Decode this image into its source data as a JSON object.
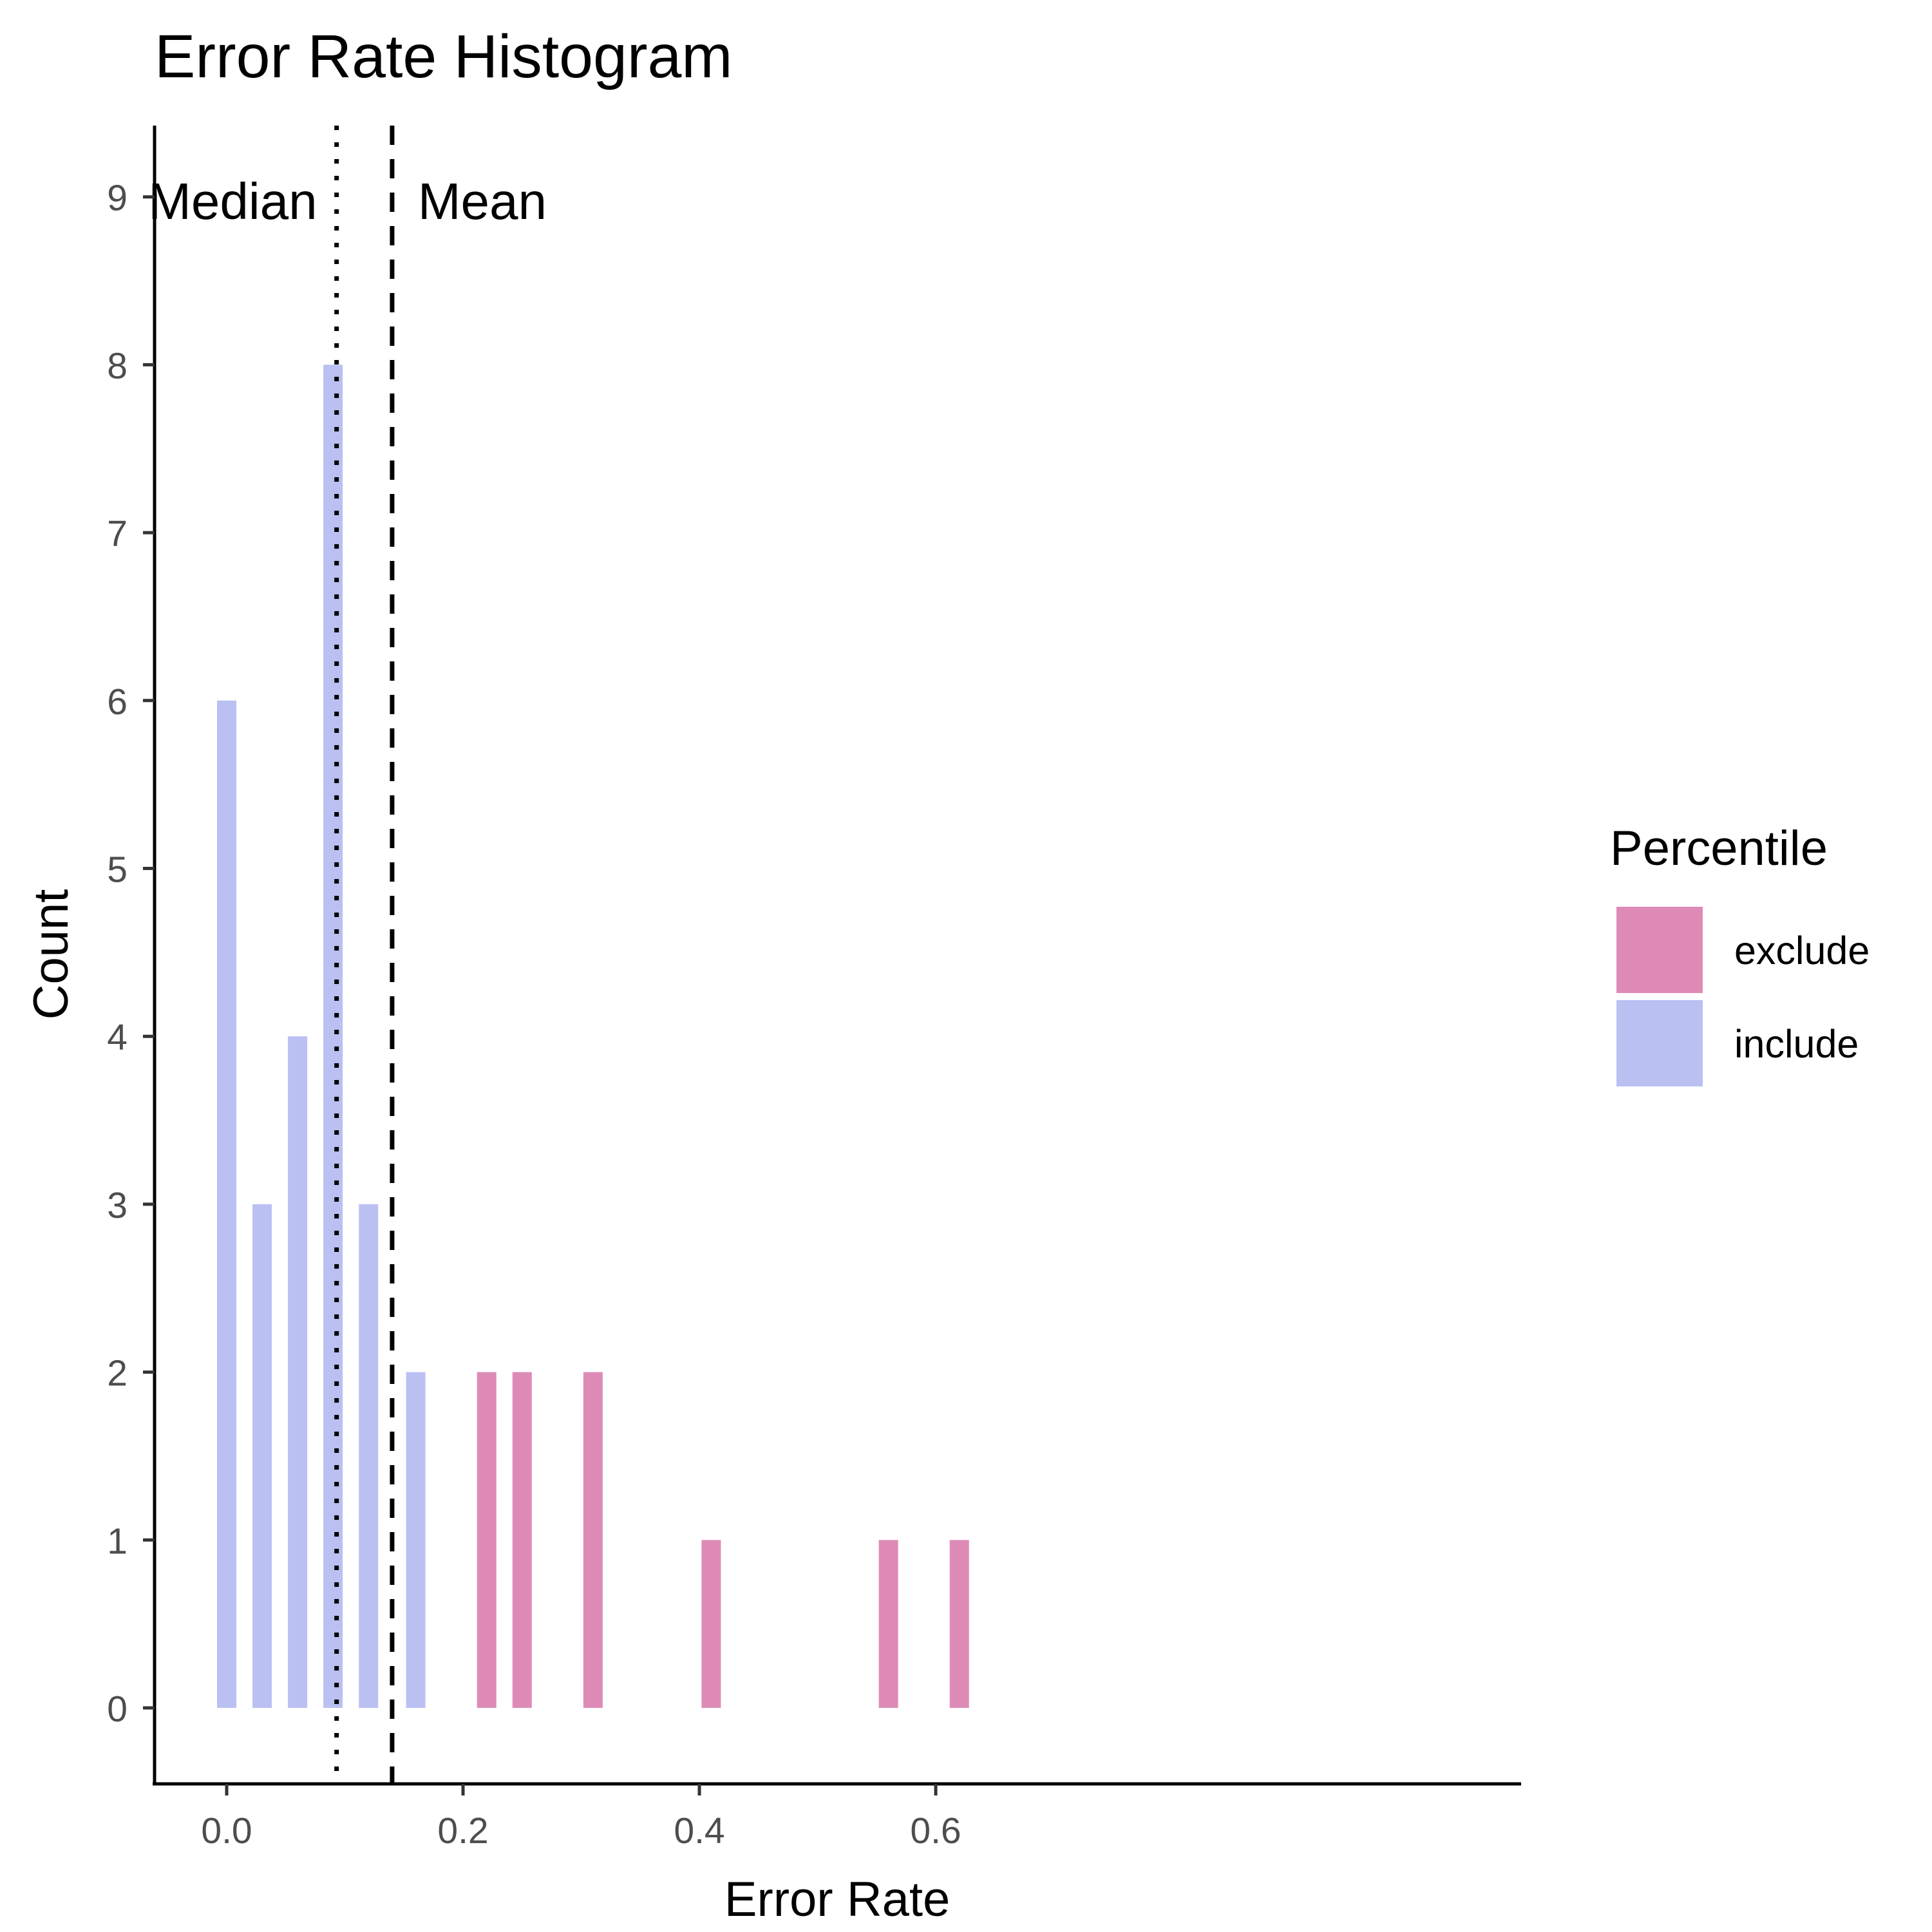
{
  "chart_data": {
    "type": "bar",
    "title": "Error Rate Histogram",
    "xlabel": "Error Rate",
    "ylabel": "Count",
    "xlim": [
      -0.09,
      0.655
    ],
    "ylim": [
      -0.45,
      9.45
    ],
    "x_ticks": [
      0.0,
      0.2,
      0.4,
      0.6
    ],
    "x_tick_labels": [
      "0.0",
      "0.2",
      "0.4",
      "0.6"
    ],
    "y_ticks": [
      0,
      1,
      2,
      3,
      4,
      5,
      6,
      7,
      8,
      9
    ],
    "y_tick_labels": [
      "0",
      "1",
      "2",
      "3",
      "4",
      "5",
      "6",
      "7",
      "8",
      "9"
    ],
    "bin_width": 0.01,
    "grid": false,
    "legend": {
      "title": "Percentile",
      "placement": "right",
      "entries": [
        {
          "label": "exclude",
          "color": "#dd8bb6"
        },
        {
          "label": "include",
          "color": "#bbc0f2"
        }
      ]
    },
    "series": [
      {
        "name": "include",
        "color": "#bbc0f2",
        "x": [
          0.0,
          0.03,
          0.06,
          0.09,
          0.12,
          0.16
        ],
        "values": [
          6,
          3,
          4,
          8,
          3,
          2
        ]
      },
      {
        "name": "exclude",
        "color": "#dd8bb6",
        "x": [
          0.22,
          0.25,
          0.31,
          0.41,
          0.56,
          0.62
        ],
        "values": [
          2,
          2,
          2,
          1,
          1,
          1
        ]
      }
    ],
    "reference_lines": [
      {
        "label": "Median",
        "x": 0.093,
        "style": "dotted"
      },
      {
        "label": "Mean",
        "x": 0.14,
        "style": "dashed"
      }
    ]
  }
}
